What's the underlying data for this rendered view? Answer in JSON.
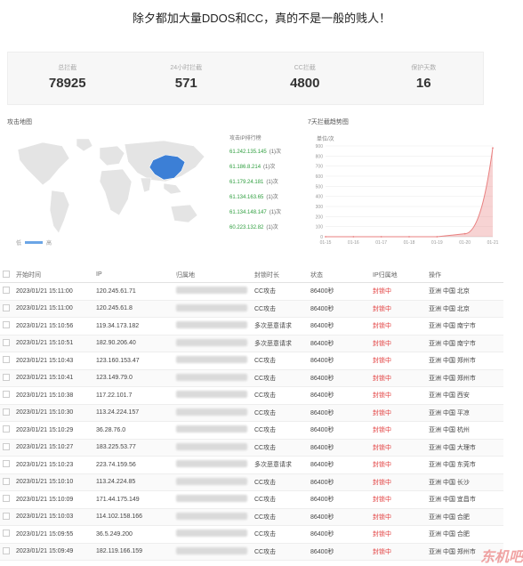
{
  "headline": "除夕都加大量DDOS和CC，真的不是一般的贱人！",
  "stats": [
    {
      "label": "总拦截",
      "value": "78925"
    },
    {
      "label": "24小时拦截",
      "value": "571"
    },
    {
      "label": "CC拦截",
      "value": "4800"
    },
    {
      "label": "保护天数",
      "value": "16"
    }
  ],
  "map": {
    "title": "攻击地图",
    "ip_list_title": "攻击IP排行榜",
    "ips": [
      {
        "ip": "61.242.135.145",
        "count": "(1)次"
      },
      {
        "ip": "61.186.8.214",
        "count": "(1)次"
      },
      {
        "ip": "61.179.24.181",
        "count": "(1)次"
      },
      {
        "ip": "61.134.163.65",
        "count": "(1)次"
      },
      {
        "ip": "61.134.148.147",
        "count": "(1)次"
      },
      {
        "ip": "60.223.132.82",
        "count": "(1)次"
      }
    ],
    "legend_low": "低",
    "legend_high": "高",
    "highlight_color": "#3c7fd6"
  },
  "trend": {
    "title": "7天拦截趋势图",
    "unit": "单位/次"
  },
  "chart_data": {
    "type": "area",
    "title": "7天拦截趋势图",
    "ylabel": "单位/次",
    "categories": [
      "01-15",
      "01-16",
      "01-17",
      "01-18",
      "01-19",
      "01-20",
      "01-21"
    ],
    "values": [
      0,
      0,
      0,
      0,
      0,
      30,
      880
    ],
    "y_ticks": [
      "0",
      "100",
      "200",
      "300",
      "400",
      "500",
      "600",
      "700",
      "800",
      "900"
    ],
    "ylim": [
      0,
      900
    ],
    "color": "#e98080"
  },
  "table": {
    "headers": [
      "开始时间",
      "IP",
      "归属地",
      "封锁时长",
      "状态",
      "IP归属地",
      "操作"
    ],
    "rows": [
      [
        "2023/01/21 15:11:00",
        "120.245.61.71",
        "CC攻击",
        "86400秒",
        "封锁中",
        "亚洲 中国 北京"
      ],
      [
        "2023/01/21 15:11:00",
        "120.245.61.8",
        "CC攻击",
        "86400秒",
        "封锁中",
        "亚洲 中国 北京"
      ],
      [
        "2023/01/21 15:10:56",
        "119.34.173.182",
        "多次恶意请求",
        "86400秒",
        "封锁中",
        "亚洲 中国 南宁市"
      ],
      [
        "2023/01/21 15:10:51",
        "182.90.206.40",
        "多次恶意请求",
        "86400秒",
        "封锁中",
        "亚洲 中国 南宁市"
      ],
      [
        "2023/01/21 15:10:43",
        "123.160.153.47",
        "CC攻击",
        "86400秒",
        "封锁中",
        "亚洲 中国 郑州市"
      ],
      [
        "2023/01/21 15:10:41",
        "123.149.79.0",
        "CC攻击",
        "86400秒",
        "封锁中",
        "亚洲 中国 郑州市"
      ],
      [
        "2023/01/21 15:10:38",
        "117.22.101.7",
        "CC攻击",
        "86400秒",
        "封锁中",
        "亚洲 中国 西安"
      ],
      [
        "2023/01/21 15:10:30",
        "113.24.224.157",
        "CC攻击",
        "86400秒",
        "封锁中",
        "亚洲 中国 平凉"
      ],
      [
        "2023/01/21 15:10:29",
        "36.28.76.0",
        "CC攻击",
        "86400秒",
        "封锁中",
        "亚洲 中国 杭州"
      ],
      [
        "2023/01/21 15:10:27",
        "183.225.53.77",
        "CC攻击",
        "86400秒",
        "封锁中",
        "亚洲 中国 大理市"
      ],
      [
        "2023/01/21 15:10:23",
        "223.74.159.56",
        "多次恶意请求",
        "86400秒",
        "封锁中",
        "亚洲 中国 东莞市"
      ],
      [
        "2023/01/21 15:10:10",
        "113.24.224.85",
        "CC攻击",
        "86400秒",
        "封锁中",
        "亚洲 中国 长沙"
      ],
      [
        "2023/01/21 15:10:09",
        "171.44.175.149",
        "CC攻击",
        "86400秒",
        "封锁中",
        "亚洲 中国 宜昌市"
      ],
      [
        "2023/01/21 15:10:03",
        "114.102.158.166",
        "CC攻击",
        "86400秒",
        "封锁中",
        "亚洲 中国 合肥"
      ],
      [
        "2023/01/21 15:09:55",
        "36.5.249.200",
        "CC攻击",
        "86400秒",
        "封锁中",
        "亚洲 中国 合肥"
      ],
      [
        "2023/01/21 15:09:49",
        "182.119.166.159",
        "CC攻击",
        "86400秒",
        "封锁中",
        "亚洲 中国 郑州市"
      ]
    ]
  },
  "watermark": "东机吧"
}
